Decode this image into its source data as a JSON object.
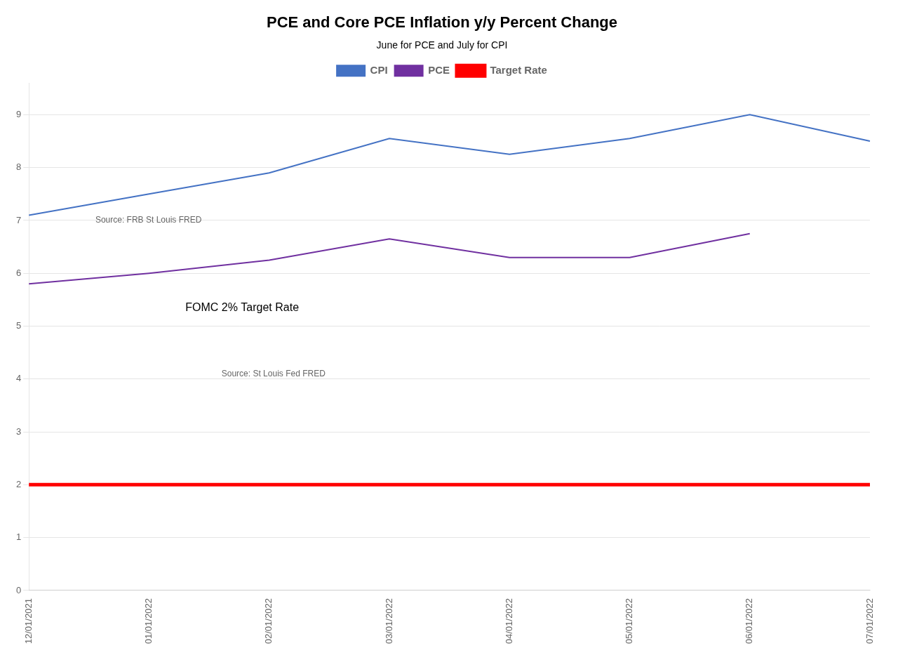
{
  "chart_data": {
    "type": "line",
    "title": "PCE and Core PCE Inflation y/y Percent Change",
    "subtitle": "June for PCE and July for CPI",
    "categories": [
      "12/01/2021",
      "01/01/2022",
      "02/01/2022",
      "03/01/2022",
      "04/01/2022",
      "05/01/2022",
      "06/01/2022",
      "07/01/2022"
    ],
    "series": [
      {
        "name": "Target Rate",
        "color": "#FF0000",
        "values": [
          2.0,
          2.0,
          2.0,
          2.0,
          2.0,
          2.0,
          2.0,
          2.0
        ]
      },
      {
        "name": "CPI",
        "color": "#4472C4",
        "values": [
          7.1,
          7.5,
          7.9,
          8.55,
          8.25,
          8.55,
          9.0,
          8.5
        ]
      },
      {
        "name": "PCE",
        "color": "#7030A0",
        "values": [
          5.8,
          6.0,
          6.25,
          6.65,
          6.3,
          6.3,
          6.75,
          null
        ]
      }
    ],
    "annotations": [
      "Source: FRB St Louis FRED",
      "FOMC 2% Target Rate",
      "Source: St Louis Fed FRED"
    ],
    "ylim": [
      0,
      9.6
    ],
    "yticks": [
      0,
      1,
      2,
      3,
      4,
      5,
      6,
      7,
      8,
      9
    ],
    "grid": true,
    "legend": "top"
  }
}
